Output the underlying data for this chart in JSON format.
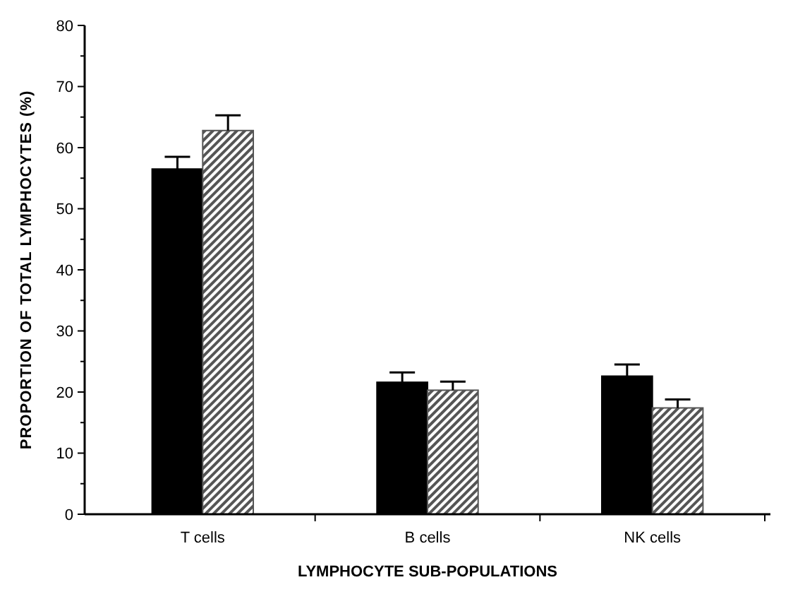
{
  "chart_data": {
    "type": "bar",
    "xlabel": "LYMPHOCYTE SUB-POPULATIONS",
    "ylabel": "PROPORTION OF TOTAL LYMPHOCYTES (%)",
    "categories": [
      "T cells",
      "B cells",
      "NK cells"
    ],
    "series": [
      {
        "color": "#000000",
        "values": [
          56.5,
          21.6,
          22.6
        ],
        "errors": [
          2.0,
          1.6,
          1.9
        ]
      },
      {
        "color": "#555555",
        "values": [
          62.8,
          20.3,
          17.4
        ],
        "errors": [
          2.5,
          1.4,
          1.4
        ]
      }
    ],
    "ylim": [
      0,
      80
    ],
    "yticks": [
      0,
      {
        "value": 5,
        "label": null
      },
      10,
      {
        "value": 15,
        "label": null
      },
      20,
      {
        "value": 25,
        "label": null
      },
      30,
      {
        "value": 35,
        "label": null
      },
      40,
      {
        "value": 45,
        "label": null
      },
      50,
      {
        "value": 55,
        "label": null
      },
      60,
      {
        "value": 65,
        "label": null
      },
      70,
      {
        "value": 75,
        "label": null
      },
      80
    ],
    "grid": false
  }
}
